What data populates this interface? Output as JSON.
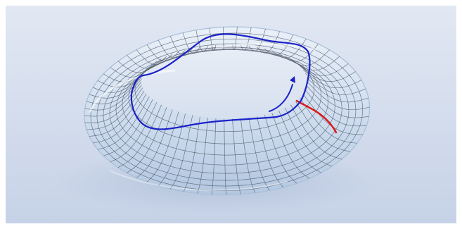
{
  "scene": {
    "subject": "glass-torus-with-mesh",
    "colors": {
      "background_top": "#dfe6f2",
      "background_bottom": "#c7d3e8",
      "glass_fill": "#cfe0f1",
      "glass_edge": "#a9bfd8",
      "mesh_line": "#4a5565",
      "loop_curve": "#1a22c8",
      "cut_curve": "#e01414"
    },
    "annotations": {
      "blue_loop": "closed-curve-around-hole",
      "blue_arrow": "direction-arrow",
      "red_curve": "meridian-cut"
    }
  }
}
